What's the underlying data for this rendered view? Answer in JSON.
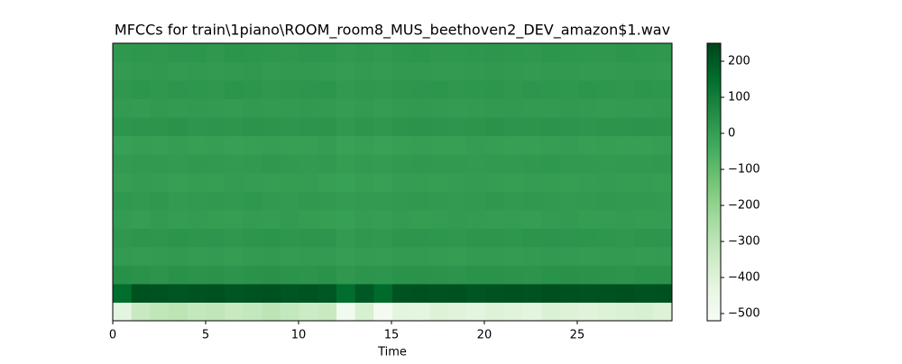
{
  "chart_data": {
    "type": "heatmap",
    "title": "MFCCs for train\\1piano\\ROOM_room8_MUS_beethoven2_DEV_amazon$1.wav",
    "xlabel": "Time",
    "xlim": [
      0,
      30.1
    ],
    "xticks": [
      0,
      5,
      10,
      15,
      20,
      25
    ],
    "colormap": "Greens",
    "zlim": [
      -520,
      250
    ],
    "zticks": [
      200,
      100,
      0,
      {
        "value": -100,
        "label": "−100"
      },
      {
        "value": -200,
        "label": "−200"
      },
      {
        "value": -300,
        "label": "−300"
      },
      {
        "value": -400,
        "label": "−400"
      },
      {
        "value": -500,
        "label": "−500"
      }
    ],
    "z": [
      [
        -420,
        -330,
        -310,
        -300,
        -320,
        -310,
        -330,
        -320,
        -300,
        -320,
        -340,
        -330,
        -490,
        -380,
        -500,
        -420,
        -430,
        -400,
        -410,
        -420,
        -400,
        -410,
        -420,
        -390,
        -400,
        -410,
        -400,
        -390,
        -380,
        -400
      ],
      [
        150,
        220,
        215,
        210,
        215,
        220,
        210,
        215,
        220,
        210,
        215,
        205,
        150,
        200,
        160,
        215,
        220,
        215,
        220,
        210,
        215,
        220,
        215,
        225,
        220,
        215,
        220,
        225,
        215,
        220
      ],
      [
        40,
        35,
        30,
        38,
        32,
        36,
        30,
        34,
        38,
        32,
        30,
        36,
        20,
        30,
        25,
        34,
        36,
        32,
        30,
        34,
        36,
        32,
        30,
        34,
        38,
        36,
        32,
        30,
        34,
        36
      ],
      [
        10,
        5,
        8,
        12,
        6,
        10,
        4,
        8,
        12,
        6,
        8,
        10,
        0,
        6,
        2,
        8,
        10,
        6,
        4,
        8,
        10,
        6,
        8,
        12,
        10,
        6,
        8,
        10,
        6,
        8
      ],
      [
        20,
        25,
        22,
        28,
        24,
        26,
        20,
        24,
        28,
        22,
        24,
        26,
        10,
        20,
        15,
        24,
        26,
        22,
        20,
        24,
        26,
        22,
        28,
        30,
        26,
        24,
        22,
        20,
        24,
        26
      ],
      [
        5,
        0,
        8,
        2,
        6,
        4,
        0,
        6,
        2,
        8,
        4,
        0,
        -5,
        2,
        0,
        6,
        4,
        2,
        8,
        6,
        4,
        2,
        0,
        6,
        8,
        4,
        2,
        6,
        4,
        2
      ],
      [
        15,
        12,
        18,
        10,
        14,
        16,
        12,
        18,
        14,
        10,
        16,
        12,
        5,
        10,
        8,
        14,
        16,
        12,
        10,
        14,
        18,
        12,
        16,
        14,
        10,
        12,
        16,
        14,
        12,
        10
      ],
      [
        0,
        5,
        2,
        -2,
        4,
        0,
        6,
        2,
        0,
        4,
        2,
        -2,
        -8,
        0,
        -5,
        2,
        4,
        0,
        2,
        6,
        4,
        0,
        2,
        4,
        0,
        2,
        6,
        4,
        2,
        0
      ],
      [
        10,
        14,
        12,
        8,
        16,
        12,
        10,
        14,
        18,
        12,
        10,
        14,
        4,
        10,
        6,
        12,
        16,
        14,
        12,
        10,
        14,
        12,
        16,
        18,
        14,
        12,
        10,
        14,
        12,
        16
      ],
      [
        -5,
        0,
        -2,
        2,
        -4,
        0,
        -6,
        -2,
        0,
        -4,
        -2,
        2,
        -10,
        -4,
        -8,
        -2,
        0,
        -4,
        -2,
        2,
        0,
        -2,
        -4,
        0,
        2,
        -2,
        0,
        -4,
        -2,
        0
      ],
      [
        25,
        30,
        28,
        34,
        26,
        30,
        24,
        32,
        28,
        26,
        30,
        28,
        15,
        24,
        20,
        28,
        32,
        30,
        26,
        28,
        34,
        30,
        28,
        32,
        30,
        26,
        28,
        30,
        32,
        28
      ],
      [
        10,
        6,
        12,
        8,
        14,
        10,
        6,
        12,
        8,
        10,
        14,
        8,
        2,
        8,
        4,
        10,
        12,
        8,
        6,
        10,
        12,
        14,
        10,
        8,
        12,
        10,
        6,
        8,
        10,
        12
      ],
      [
        20,
        24,
        18,
        26,
        22,
        20,
        28,
        24,
        20,
        22,
        26,
        24,
        12,
        20,
        16,
        22,
        26,
        24,
        20,
        22,
        24,
        20,
        26,
        22,
        18,
        24,
        22,
        20,
        24,
        22
      ],
      [
        8,
        12,
        16,
        10,
        14,
        8,
        12,
        16,
        10,
        14,
        12,
        8,
        2,
        10,
        6,
        12,
        14,
        10,
        8,
        12,
        16,
        12,
        10,
        14,
        12,
        8,
        10,
        12,
        14,
        10
      ],
      [
        18,
        22,
        20,
        26,
        24,
        20,
        28,
        24,
        22,
        20,
        26,
        22,
        12,
        18,
        14,
        22,
        24,
        20,
        18,
        22,
        26,
        22,
        20,
        24,
        22,
        18,
        20,
        24,
        22,
        20
      ]
    ]
  }
}
